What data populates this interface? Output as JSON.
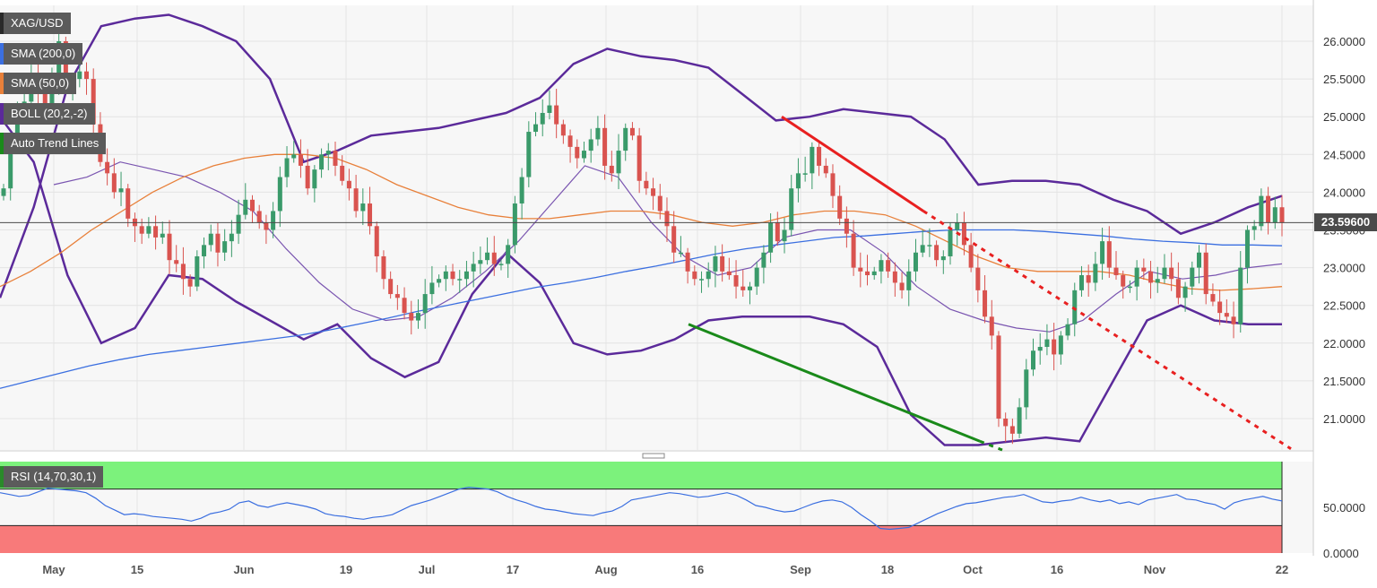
{
  "legend": {
    "symbol": "XAG/USD",
    "sma200": "SMA (200,0)",
    "sma50": "SMA (50,0)",
    "boll": "BOLL (20,2,-2)",
    "trend": "Auto Trend Lines"
  },
  "rsi_label": "RSI (14,70,30,1)",
  "last_price_label": "23.59600",
  "colors": {
    "up": "#3a9a6a",
    "down": "#d9534f",
    "sma200": "#3b6fe0",
    "sma50": "#e8803a",
    "boll": "#5b2a9a",
    "boll_mid": "#7a55b0",
    "trend_down": "#e82020",
    "trend_up": "#1a8a1a",
    "rsi_line": "#3b6fe0",
    "rsi_over": "#7cf27c",
    "rsi_under": "#f87a7a"
  },
  "chart_data": [
    {
      "type": "candlestick",
      "title": "XAG/USD",
      "x_ticks": [
        "May",
        "15",
        "Jun",
        "19",
        "Jul",
        "17",
        "Aug",
        "16",
        "Sep",
        "18",
        "Oct",
        "16",
        "Nov",
        "22"
      ],
      "y_ticks": [
        "26.0000",
        "25.5000",
        "25.0000",
        "24.5000",
        "24.0000",
        "23.5000",
        "23.0000",
        "22.5000",
        "22.0000",
        "21.5000",
        "21.0000"
      ],
      "ylim": [
        20.6,
        26.5
      ],
      "last_price": 23.596,
      "close": [
        24.05,
        24.6,
        25.1,
        25.2,
        25.55,
        25.35,
        25.15,
        25.45,
        26.0,
        25.4,
        25.5,
        25.6,
        25.5,
        24.9,
        24.4,
        24.25,
        24.0,
        24.05,
        23.65,
        23.55,
        23.45,
        23.55,
        23.4,
        23.45,
        23.1,
        23.05,
        22.85,
        22.75,
        23.15,
        23.3,
        23.45,
        23.2,
        23.35,
        23.45,
        23.7,
        23.9,
        23.75,
        23.6,
        23.5,
        23.75,
        24.2,
        24.45,
        24.5,
        24.35,
        24.05,
        24.3,
        24.5,
        24.55,
        24.35,
        24.15,
        24.05,
        23.75,
        23.85,
        23.55,
        23.15,
        22.85,
        22.65,
        22.6,
        22.4,
        22.3,
        22.4,
        22.65,
        22.8,
        22.85,
        22.95,
        22.85,
        22.85,
        22.95,
        23.05,
        23.1,
        23.2,
        23.05,
        23.05,
        23.3,
        23.85,
        24.2,
        24.8,
        24.9,
        25.05,
        25.15,
        24.9,
        24.75,
        24.6,
        24.45,
        24.55,
        24.7,
        24.85,
        24.35,
        24.25,
        24.55,
        24.85,
        24.75,
        24.15,
        24.05,
        23.95,
        23.75,
        23.55,
        23.2,
        23.2,
        22.95,
        22.85,
        22.85,
        22.95,
        23.15,
        22.95,
        22.9,
        22.75,
        22.7,
        22.75,
        23.0,
        23.2,
        23.6,
        23.35,
        23.5,
        24.05,
        24.25,
        24.25,
        24.6,
        24.35,
        24.25,
        23.95,
        23.65,
        23.45,
        23.0,
        22.95,
        22.9,
        22.95,
        23.1,
        22.95,
        22.8,
        22.7,
        22.95,
        23.2,
        23.3,
        23.3,
        23.1,
        23.15,
        23.5,
        23.6,
        23.3,
        23.0,
        22.7,
        22.35,
        22.1,
        21.0,
        20.9,
        20.8,
        21.15,
        21.65,
        21.9,
        21.95,
        22.05,
        21.85,
        22.1,
        22.25,
        22.7,
        22.9,
        22.8,
        23.05,
        23.35,
        23.0,
        22.9,
        22.75,
        22.75,
        23.0,
        22.95,
        22.8,
        22.85,
        23.0,
        22.85,
        22.6,
        22.75,
        23.0,
        23.2,
        22.65,
        22.55,
        22.4,
        22.35,
        22.25,
        23.0,
        23.5,
        23.55,
        23.95,
        23.6,
        23.8,
        23.6
      ],
      "sma200": [
        21.4,
        21.5,
        21.6,
        21.7,
        21.78,
        21.85,
        21.9,
        21.95,
        22.0,
        22.05,
        22.1,
        22.17,
        22.25,
        22.33,
        22.42,
        22.5,
        22.58,
        22.66,
        22.74,
        22.8,
        22.87,
        22.95,
        23.02,
        23.1,
        23.18,
        23.25,
        23.3,
        23.35,
        23.4,
        23.42,
        23.45,
        23.48,
        23.5,
        23.5,
        23.5,
        23.48,
        23.45,
        23.42,
        23.38,
        23.35,
        23.33,
        23.3,
        23.3,
        23.29
      ],
      "sma50": [
        22.75,
        22.95,
        23.2,
        23.5,
        23.75,
        24.0,
        24.2,
        24.35,
        24.45,
        24.5,
        24.5,
        24.45,
        24.3,
        24.1,
        23.95,
        23.8,
        23.7,
        23.65,
        23.65,
        23.7,
        23.75,
        23.75,
        23.7,
        23.6,
        23.55,
        23.6,
        23.7,
        23.75,
        23.75,
        23.7,
        23.55,
        23.35,
        23.15,
        23.0,
        22.95,
        22.95,
        22.95,
        22.9,
        22.8,
        22.72,
        22.7,
        22.72,
        22.75
      ],
      "boll_upper": [
        22.6,
        23.8,
        25.4,
        26.2,
        26.3,
        26.35,
        26.2,
        26.0,
        25.5,
        24.4,
        24.55,
        24.75,
        24.8,
        24.85,
        24.95,
        25.05,
        25.25,
        25.7,
        25.9,
        25.8,
        25.75,
        25.65,
        25.3,
        24.95,
        25.0,
        25.1,
        25.05,
        25.0,
        24.7,
        24.1,
        24.15,
        24.15,
        24.1,
        23.9,
        23.75,
        23.45,
        23.6,
        23.8,
        23.95
      ],
      "boll_mid": [
        24.1,
        24.2,
        24.4,
        24.3,
        24.2,
        24.0,
        23.75,
        23.25,
        22.8,
        22.45,
        22.3,
        22.35,
        22.6,
        22.95,
        23.35,
        23.85,
        24.35,
        24.2,
        23.6,
        23.15,
        22.9,
        23.0,
        23.4,
        23.5,
        23.5,
        23.2,
        22.75,
        22.45,
        22.3,
        22.2,
        22.15,
        22.3,
        22.65,
        22.95,
        22.85,
        22.9,
        23.0,
        23.05
      ],
      "boll_lower": [
        25.0,
        24.4,
        22.9,
        22.0,
        22.2,
        22.9,
        22.85,
        22.55,
        22.3,
        22.05,
        22.25,
        21.8,
        21.55,
        21.75,
        22.65,
        23.2,
        22.8,
        22.0,
        21.85,
        21.9,
        22.05,
        22.3,
        22.35,
        22.35,
        22.35,
        22.25,
        21.95,
        21.05,
        20.65,
        20.65,
        20.7,
        20.75,
        20.7,
        21.5,
        22.3,
        22.5,
        22.3,
        22.25,
        22.25
      ],
      "trend_down": {
        "from": [
          25.0
        ],
        "solid_to": [
          23.75
        ],
        "dotted_to": [
          20.6
        ]
      },
      "trend_up": {
        "from": [
          22.25
        ],
        "solid_to": [
          20.7
        ]
      }
    },
    {
      "type": "line",
      "title": "RSI (14,70,30,1)",
      "y_ticks": [
        "50.0000",
        "0.0000"
      ],
      "ylim": [
        0,
        100
      ],
      "overbought": 70,
      "oversold": 30,
      "values": [
        66,
        64,
        62,
        63,
        67,
        71,
        70,
        69,
        68,
        66,
        60,
        52,
        47,
        42,
        43,
        42,
        40,
        39,
        38,
        37,
        35,
        38,
        43,
        45,
        48,
        55,
        57,
        52,
        50,
        53,
        55,
        53,
        51,
        48,
        43,
        41,
        40,
        38,
        37,
        39,
        40,
        42,
        47,
        52,
        55,
        58,
        62,
        66,
        70,
        72,
        71,
        70,
        67,
        62,
        58,
        55,
        51,
        48,
        47,
        45,
        43,
        42,
        41,
        44,
        46,
        51,
        58,
        60,
        62,
        64,
        66,
        65,
        63,
        61,
        62,
        64,
        66,
        63,
        58,
        52,
        50,
        47,
        45,
        46,
        50,
        54,
        57,
        58,
        56,
        50,
        42,
        35,
        27,
        26,
        27,
        28,
        33,
        38,
        43,
        47,
        51,
        54,
        55,
        57,
        59,
        61,
        62,
        64,
        60,
        56,
        55,
        57,
        58,
        61,
        58,
        56,
        58,
        54,
        56,
        53,
        58,
        60,
        62,
        64,
        59,
        58,
        55,
        53,
        48,
        55,
        58,
        60,
        62,
        59,
        57
      ]
    }
  ]
}
